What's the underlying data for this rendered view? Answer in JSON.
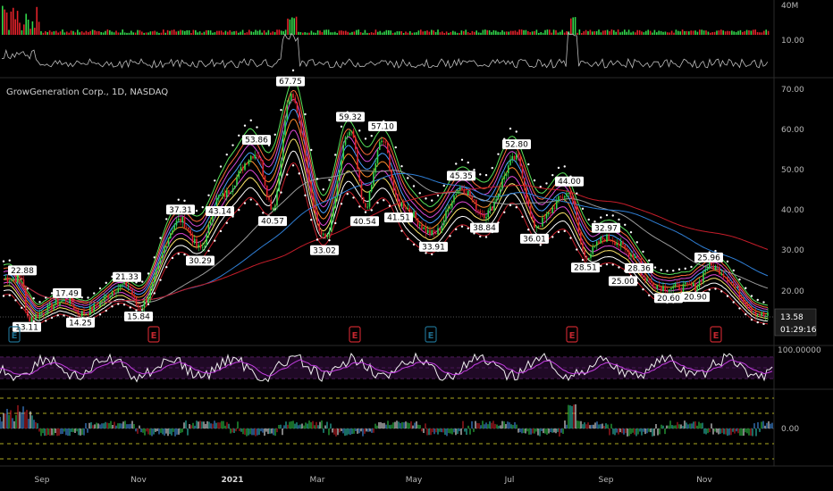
{
  "header": {
    "title": "GrowGeneration Corp., 1D, NASDAQ"
  },
  "volume_axis": {
    "labels": [
      "40M",
      "10.00"
    ]
  },
  "price_axis": {
    "labels": [
      "70.00",
      "60.00",
      "50.00",
      "40.00",
      "30.00",
      "20.00"
    ],
    "current_price": "13.58",
    "countdown": "01:29:16"
  },
  "oscillator_axis": {
    "labels": [
      "100.00000",
      "0.00"
    ]
  },
  "time_axis": {
    "labels": [
      "Sep",
      "Nov",
      "2021",
      "Mar",
      "May",
      "Jul",
      "Sep",
      "Nov"
    ]
  },
  "earnings_markers": [
    {
      "label": "E",
      "color": "#1e6c8c"
    },
    {
      "label": "E",
      "color": "#c2262e"
    },
    {
      "label": "E",
      "color": "#c2262e"
    },
    {
      "label": "E",
      "color": "#1e6c8c"
    },
    {
      "label": "E",
      "color": "#c2262e"
    },
    {
      "label": "E",
      "color": "#c2262e"
    }
  ],
  "price_tags": [
    "22.88",
    "13.11",
    "17.49",
    "14.25",
    "21.33",
    "15.84",
    "37.31",
    "30.29",
    "43.14",
    "53.86",
    "40.57",
    "67.75",
    "33.02",
    "59.32",
    "40.54",
    "57.10",
    "41.51",
    "33.91",
    "45.35",
    "38.84",
    "52.80",
    "36.01",
    "44.00",
    "28.51",
    "32.97",
    "28.36",
    "25.00",
    "20.60",
    "20.90",
    "25.96"
  ],
  "chart_data": {
    "type": "candlestick",
    "title": "GrowGeneration Corp., 1D, NASDAQ",
    "x_ticks": [
      "Sep",
      "Nov",
      "2021",
      "Mar",
      "May",
      "Jul",
      "Sep",
      "Nov"
    ],
    "y_ticks": [
      70,
      60,
      50,
      40,
      30,
      20
    ],
    "ylim": [
      10,
      74
    ],
    "pivots": [
      {
        "x": 25,
        "y": 22.88
      },
      {
        "x": 30,
        "y": 13.11
      },
      {
        "x": 75,
        "y": 17.49
      },
      {
        "x": 90,
        "y": 14.25
      },
      {
        "x": 142,
        "y": 21.33
      },
      {
        "x": 155,
        "y": 15.84
      },
      {
        "x": 202,
        "y": 37.31
      },
      {
        "x": 224,
        "y": 30.29
      },
      {
        "x": 246,
        "y": 43.14
      },
      {
        "x": 287,
        "y": 53.86
      },
      {
        "x": 305,
        "y": 40.57
      },
      {
        "x": 325,
        "y": 67.75
      },
      {
        "x": 363,
        "y": 33.02
      },
      {
        "x": 392,
        "y": 59.32
      },
      {
        "x": 408,
        "y": 40.54
      },
      {
        "x": 428,
        "y": 57.1
      },
      {
        "x": 446,
        "y": 41.51
      },
      {
        "x": 485,
        "y": 33.91
      },
      {
        "x": 516,
        "y": 45.35
      },
      {
        "x": 542,
        "y": 38.84
      },
      {
        "x": 578,
        "y": 52.8
      },
      {
        "x": 598,
        "y": 36.01
      },
      {
        "x": 637,
        "y": 44.0
      },
      {
        "x": 655,
        "y": 28.51
      },
      {
        "x": 678,
        "y": 32.97
      },
      {
        "x": 715,
        "y": 28.36
      },
      {
        "x": 697,
        "y": 25.0
      },
      {
        "x": 748,
        "y": 20.6
      },
      {
        "x": 778,
        "y": 20.9
      },
      {
        "x": 793,
        "y": 25.96
      },
      {
        "x": 858,
        "y": 13.58
      }
    ]
  },
  "colors": {
    "background": "#000000",
    "up": "#32d74b",
    "down": "#e0222a",
    "tag_bg": "#ffffff",
    "tag_text": "#000000",
    "osc_white": "#f0f0f0",
    "osc_purple": "#c33ee0",
    "grid_dash": "#7a2f8a",
    "yellow_dash": "#e3e12a"
  }
}
